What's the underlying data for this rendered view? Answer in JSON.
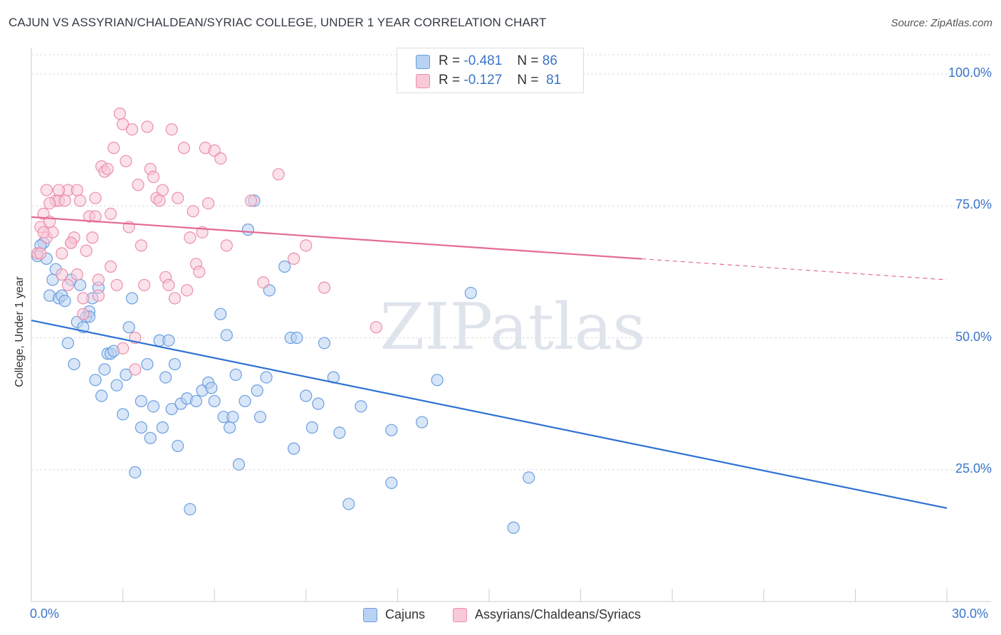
{
  "chart_data": {
    "type": "scatter",
    "title": "CAJUN VS ASSYRIAN/CHALDEAN/SYRIAC COLLEGE, UNDER 1 YEAR CORRELATION CHART",
    "source": "Source: ZipAtlas.com",
    "xlabel": "",
    "ylabel": "College, Under 1 year",
    "xlim": [
      0,
      30
    ],
    "ylim": [
      0,
      105
    ],
    "x_tick_labels": [
      "0.0%",
      "30.0%"
    ],
    "y_ticks": [
      25,
      50,
      75,
      100
    ],
    "y_tick_labels": [
      "25.0%",
      "50.0%",
      "75.0%",
      "100.0%"
    ],
    "grid": true,
    "watermark": "ZIPatlas",
    "stats": [
      {
        "r_label": "R =",
        "r": "-0.481",
        "n_label": "N =",
        "n": "86"
      },
      {
        "r_label": "R =",
        "r": "-0.127",
        "n_label": "N =",
        "n": "81"
      }
    ],
    "series": [
      {
        "name": "Cajuns",
        "color": "#6a9fe0",
        "fill": "#b9d1f2",
        "line_color": "#2e72d2",
        "trend": {
          "x0": 0,
          "y0": 53.3,
          "x1": 30,
          "y1": 17.7,
          "solid_until": 30
        },
        "points": [
          [
            0.2,
            65.5
          ],
          [
            0.4,
            68
          ],
          [
            0.5,
            65
          ],
          [
            0.6,
            58
          ],
          [
            0.7,
            61
          ],
          [
            0.8,
            63
          ],
          [
            0.9,
            57.5
          ],
          [
            1.0,
            58
          ],
          [
            1.1,
            57
          ],
          [
            1.2,
            49
          ],
          [
            1.3,
            61
          ],
          [
            1.4,
            45
          ],
          [
            1.5,
            53
          ],
          [
            1.6,
            60
          ],
          [
            1.7,
            52
          ],
          [
            1.8,
            54
          ],
          [
            1.9,
            55
          ],
          [
            2.0,
            57.5
          ],
          [
            2.1,
            42
          ],
          [
            2.2,
            59.5
          ],
          [
            2.3,
            39
          ],
          [
            2.4,
            44
          ],
          [
            2.5,
            47
          ],
          [
            2.6,
            47
          ],
          [
            2.7,
            47.5
          ],
          [
            2.8,
            41
          ],
          [
            3.0,
            35.5
          ],
          [
            3.1,
            43
          ],
          [
            3.2,
            52
          ],
          [
            3.3,
            57.5
          ],
          [
            3.4,
            24.5
          ],
          [
            3.6,
            38
          ],
          [
            3.6,
            33
          ],
          [
            3.8,
            45
          ],
          [
            3.9,
            31
          ],
          [
            4.0,
            37
          ],
          [
            4.2,
            49.5
          ],
          [
            4.3,
            33
          ],
          [
            4.4,
            42.5
          ],
          [
            4.5,
            49.5
          ],
          [
            4.6,
            36.5
          ],
          [
            4.7,
            45
          ],
          [
            4.8,
            29.5
          ],
          [
            4.9,
            37.5
          ],
          [
            5.1,
            38.5
          ],
          [
            5.2,
            17.5
          ],
          [
            5.4,
            38
          ],
          [
            5.6,
            40
          ],
          [
            5.8,
            41.5
          ],
          [
            5.9,
            40.5
          ],
          [
            6.0,
            38
          ],
          [
            6.2,
            54.5
          ],
          [
            6.3,
            35
          ],
          [
            6.4,
            50.5
          ],
          [
            6.5,
            33
          ],
          [
            6.6,
            35
          ],
          [
            6.7,
            43
          ],
          [
            6.8,
            26
          ],
          [
            7.0,
            38
          ],
          [
            7.1,
            70.5
          ],
          [
            7.3,
            76
          ],
          [
            7.4,
            40
          ],
          [
            7.5,
            35
          ],
          [
            7.7,
            42.5
          ],
          [
            7.8,
            59
          ],
          [
            8.3,
            63.5
          ],
          [
            8.5,
            50
          ],
          [
            8.6,
            29
          ],
          [
            8.7,
            50
          ],
          [
            9.0,
            39
          ],
          [
            9.2,
            33
          ],
          [
            9.4,
            37.5
          ],
          [
            9.6,
            49
          ],
          [
            9.9,
            42.5
          ],
          [
            10.1,
            32
          ],
          [
            10.4,
            18.5
          ],
          [
            10.8,
            37
          ],
          [
            11.8,
            32.5
          ],
          [
            11.8,
            22.5
          ],
          [
            12.8,
            34
          ],
          [
            13.3,
            42
          ],
          [
            14.4,
            58.5
          ],
          [
            15.8,
            14
          ],
          [
            16.3,
            23.5
          ],
          [
            0.3,
            67.5
          ],
          [
            1.9,
            54
          ]
        ]
      },
      {
        "name": "Assyrians/Chaldeans/Syriacs",
        "color": "#ec8fab",
        "fill": "#f8c9d7",
        "line_color": "#e46b94",
        "trend": {
          "x0": 0,
          "y0": 72.9,
          "x1": 30,
          "y1": 61.0,
          "solid_until": 20
        },
        "points": [
          [
            0.2,
            66
          ],
          [
            0.3,
            71
          ],
          [
            0.4,
            73.5
          ],
          [
            0.5,
            69
          ],
          [
            0.6,
            72
          ],
          [
            0.7,
            70
          ],
          [
            0.8,
            76
          ],
          [
            0.9,
            76
          ],
          [
            1.0,
            62
          ],
          [
            1.0,
            66
          ],
          [
            1.1,
            76
          ],
          [
            1.2,
            78
          ],
          [
            1.3,
            68
          ],
          [
            1.4,
            69
          ],
          [
            1.5,
            78
          ],
          [
            1.6,
            76
          ],
          [
            1.7,
            57.5
          ],
          [
            1.8,
            66.5
          ],
          [
            1.9,
            73
          ],
          [
            2.0,
            69
          ],
          [
            2.1,
            76.5
          ],
          [
            2.2,
            58
          ],
          [
            2.3,
            82.5
          ],
          [
            2.4,
            81.5
          ],
          [
            2.5,
            82
          ],
          [
            2.6,
            63.5
          ],
          [
            2.7,
            86
          ],
          [
            2.8,
            60
          ],
          [
            2.9,
            92.5
          ],
          [
            3.0,
            90.5
          ],
          [
            3.1,
            83.5
          ],
          [
            3.2,
            71
          ],
          [
            3.3,
            89.5
          ],
          [
            3.4,
            44
          ],
          [
            3.5,
            79
          ],
          [
            3.6,
            67.5
          ],
          [
            3.7,
            60
          ],
          [
            3.8,
            90
          ],
          [
            3.9,
            82
          ],
          [
            4.0,
            80.5
          ],
          [
            4.1,
            76.5
          ],
          [
            4.2,
            76
          ],
          [
            4.3,
            78
          ],
          [
            4.4,
            61.5
          ],
          [
            4.5,
            60
          ],
          [
            4.6,
            89.5
          ],
          [
            4.7,
            57.5
          ],
          [
            4.8,
            76.5
          ],
          [
            5.0,
            86
          ],
          [
            5.1,
            59
          ],
          [
            5.2,
            69
          ],
          [
            5.3,
            74
          ],
          [
            5.4,
            64
          ],
          [
            5.5,
            62.5
          ],
          [
            5.6,
            70
          ],
          [
            5.7,
            86
          ],
          [
            5.8,
            75.5
          ],
          [
            6.0,
            85.5
          ],
          [
            6.2,
            84
          ],
          [
            6.4,
            67.5
          ],
          [
            7.2,
            76
          ],
          [
            7.6,
            60.5
          ],
          [
            8.1,
            81
          ],
          [
            8.6,
            65
          ],
          [
            9.0,
            67.5
          ],
          [
            9.6,
            59.5
          ],
          [
            11.3,
            52
          ],
          [
            0.3,
            66
          ],
          [
            0.5,
            78
          ],
          [
            0.9,
            78
          ],
          [
            1.2,
            60
          ],
          [
            1.5,
            62
          ],
          [
            1.7,
            54.5
          ],
          [
            2.1,
            73
          ],
          [
            2.6,
            73.5
          ],
          [
            3.0,
            48
          ],
          [
            3.4,
            50
          ],
          [
            0.6,
            75.5
          ],
          [
            1.3,
            68
          ],
          [
            0.4,
            70
          ],
          [
            2.2,
            61
          ]
        ]
      }
    ]
  },
  "legend": {
    "items": [
      "Cajuns",
      "Assyrians/Chaldeans/Syriacs"
    ]
  }
}
